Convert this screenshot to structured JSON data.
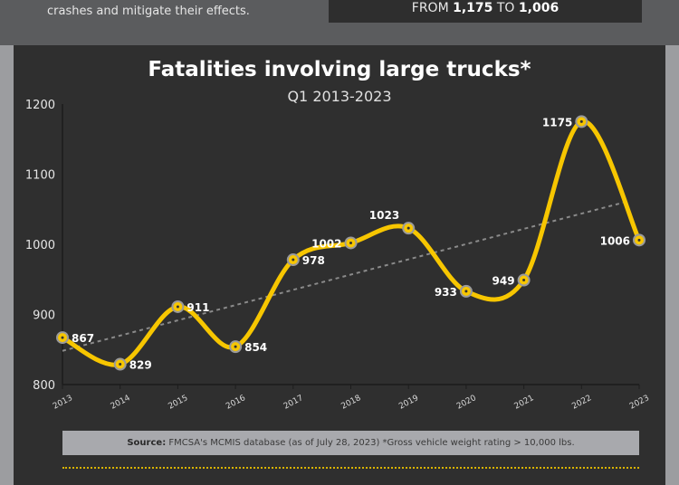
{
  "header": {
    "intro_text": "crashes and mitigate their effects.",
    "callout_prefix": "FROM",
    "callout_from": "1,175",
    "callout_mid": "TO",
    "callout_to": "1,006"
  },
  "colors": {
    "line": "#f7c600",
    "trend": "#8a8a8a",
    "panel": "#2f2f2f",
    "background": "#5b5c5e"
  },
  "chart_data": {
    "type": "line",
    "title": "Fatalities involving large trucks*",
    "subtitle": "Q1 2013-2023",
    "categories": [
      "2013",
      "2014",
      "2015",
      "2016",
      "2017",
      "2018",
      "2019",
      "2020",
      "2021",
      "2022",
      "2023"
    ],
    "series": [
      {
        "values": [
          867,
          829,
          911,
          854,
          978,
          1002,
          1023,
          933,
          949,
          1175,
          1006
        ]
      }
    ],
    "trendline": "linear, dashed",
    "ylim": [
      800,
      1200
    ],
    "yticks": [
      800,
      900,
      1000,
      1100,
      1200
    ],
    "grid": false,
    "data_labels": true
  },
  "footer": {
    "source_label": "Source:",
    "source_text": "FMCSA's MCMIS database (as of July 28, 2023) *Gross vehicle weight rating > 10,000 lbs."
  }
}
